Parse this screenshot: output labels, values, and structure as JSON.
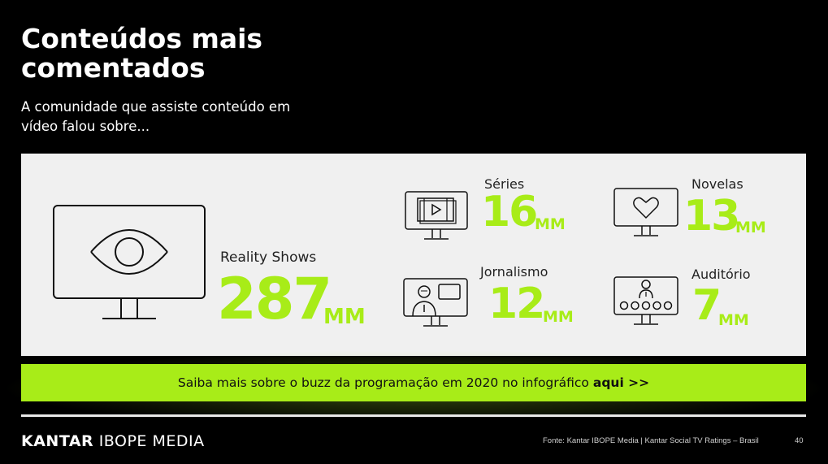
{
  "header": {
    "title": "Conteúdos mais comentados",
    "subtitle": "A comunidade que assiste conteúdo em vídeo falou sobre..."
  },
  "main_stat": {
    "label": "Reality Shows",
    "value": "287",
    "unit": "MM",
    "icon": "eye-monitor-icon"
  },
  "stats": [
    {
      "label": "Séries",
      "value": "16",
      "unit": "MM",
      "icon": "film-monitor-icon"
    },
    {
      "label": "Novelas",
      "value": "13",
      "unit": "MM",
      "icon": "heart-monitor-icon"
    },
    {
      "label": "Jornalismo",
      "value": "12",
      "unit": "MM",
      "icon": "news-monitor-icon"
    },
    {
      "label": "Auditório",
      "value": "7",
      "unit": "MM",
      "icon": "audience-monitor-icon"
    }
  ],
  "cta": {
    "text": "Saiba mais sobre o buzz da programação em 2020 no infográfico",
    "link_label": "aqui >>"
  },
  "footer": {
    "logo_part1": "KANTAR",
    "logo_part2": "IBOPE MEDIA",
    "source": "Fonte: Kantar IBOPE Media | Kantar Social TV Ratings – Brasil",
    "page_number": "40"
  },
  "colors": {
    "accent": "#a8ec18",
    "panel": "#f0f0f0",
    "background": "#000000"
  }
}
